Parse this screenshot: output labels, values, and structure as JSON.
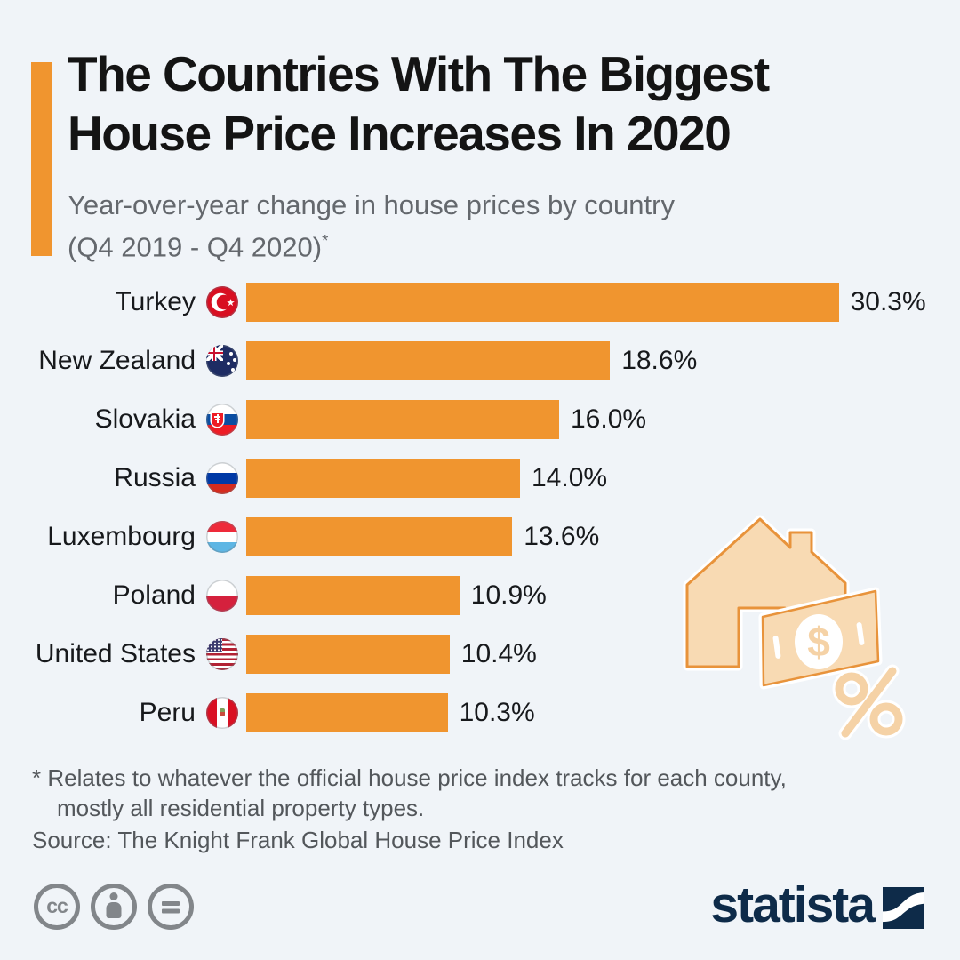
{
  "colors": {
    "background": "#F0F4F8",
    "accent_orange": "#F0952F",
    "bar_orange": "#F0952F",
    "house_fill": "#F8DAB3",
    "house_stroke": "#E8933B",
    "percent_soft": "#F5D2A6",
    "navy": "#0E2B49",
    "subtitle_gray": "#64686D",
    "footnote_gray": "#53575B",
    "license_gray": "#82868A"
  },
  "header": {
    "title_line1": "The Countries With The Biggest",
    "title_line2": "House Price Increases In 2020",
    "subtitle_line1": "Year-over-year change in house prices by country",
    "subtitle_line2": "(Q4 2019 - Q4 2020)",
    "footnote_marker": "*"
  },
  "chart_data": {
    "type": "bar",
    "orientation": "horizontal",
    "unit": "percent",
    "title": "The Countries With The Biggest House Price Increases In 2020",
    "subtitle": "Year-over-year change in house prices by country (Q4 2019 - Q4 2020)*",
    "categories": [
      "Turkey",
      "New Zealand",
      "Slovakia",
      "Russia",
      "Luxembourg",
      "Poland",
      "United States",
      "Peru"
    ],
    "values": [
      30.3,
      18.6,
      16.0,
      14.0,
      13.6,
      10.9,
      10.4,
      10.3
    ],
    "value_labels": [
      "30.3%",
      "18.6%",
      "16.0%",
      "14.0%",
      "13.6%",
      "10.9%",
      "10.4%",
      "10.3%"
    ],
    "flags": [
      "tr",
      "nz",
      "sk",
      "ru",
      "lu",
      "pl",
      "us",
      "pe"
    ],
    "flag_icon_names": [
      "turkey-flag-icon",
      "new-zealand-flag-icon",
      "slovakia-flag-icon",
      "russia-flag-icon",
      "luxembourg-flag-icon",
      "poland-flag-icon",
      "united-states-flag-icon",
      "peru-flag-icon"
    ],
    "bar_color": "#F0952F",
    "xlim": [
      0,
      32
    ],
    "grid": false,
    "legend": false
  },
  "footnote": {
    "line1": "* Relates to whatever the official house price index tracks for each county,",
    "line2": "mostly all residential property types."
  },
  "source": "Source: The Knight Frank Global House Price Index",
  "footer": {
    "license": {
      "cc_label": "cc",
      "icons": [
        "cc-icon",
        "attribution-icon",
        "no-derivatives-icon"
      ]
    },
    "brand": {
      "name": "statista",
      "icon": "statista-wave-icon"
    }
  },
  "decoration": {
    "name": "house-price-illustration",
    "elements": [
      "house",
      "banknote-with-dollar",
      "percent-sign"
    ],
    "dollar_symbol": "$"
  }
}
